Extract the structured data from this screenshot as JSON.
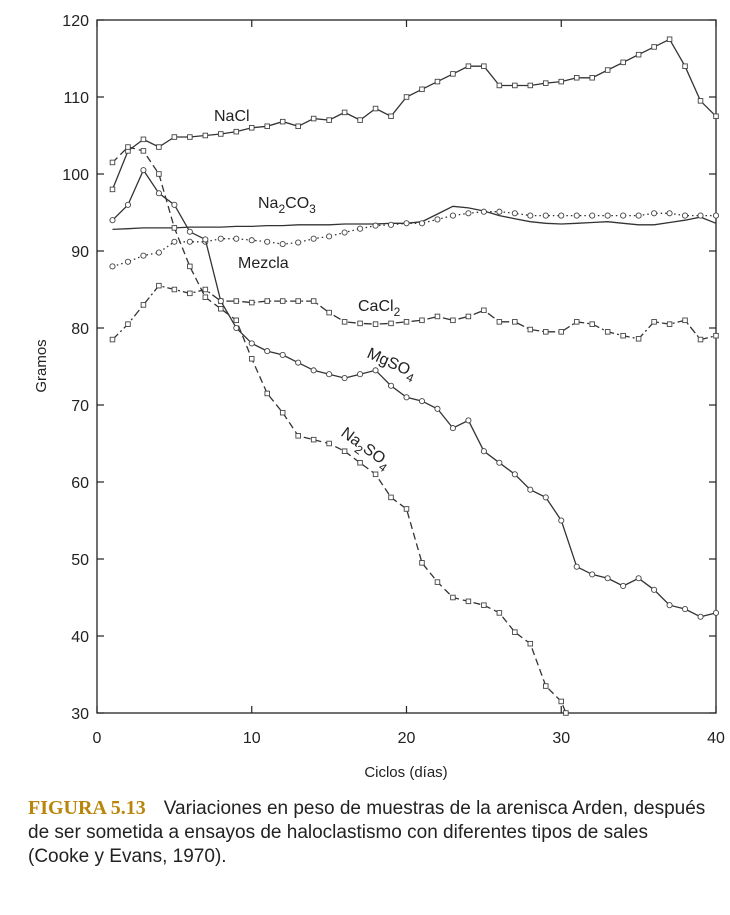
{
  "chart_data": {
    "type": "line",
    "xlabel": "Ciclos (días)",
    "ylabel": "Gramos",
    "xlim": [
      0,
      40
    ],
    "ylim": [
      30,
      120
    ],
    "xticks": [
      0,
      10,
      20,
      30,
      40
    ],
    "yticks": [
      30,
      40,
      50,
      60,
      70,
      80,
      90,
      100,
      110,
      120
    ],
    "grid": false,
    "series": [
      {
        "name": "NaCl",
        "label_main": "NaCl",
        "label_sub": "",
        "label_tail": "",
        "style": "solid",
        "marker": "square",
        "x": [
          1,
          2,
          3,
          4,
          5,
          6,
          7,
          8,
          9,
          10,
          11,
          12,
          13,
          14,
          15,
          16,
          17,
          18,
          19,
          20,
          21,
          22,
          23,
          24,
          25,
          26,
          27,
          28,
          29,
          30,
          31,
          32,
          33,
          34,
          35,
          36,
          37,
          38,
          39,
          40
        ],
        "y": [
          98,
          103,
          104.5,
          103.5,
          104.8,
          104.8,
          105,
          105.2,
          105.5,
          106,
          106.2,
          106.8,
          106.2,
          107.2,
          107,
          108,
          107,
          108.5,
          107.5,
          110,
          111,
          112,
          113,
          114,
          114,
          111.5,
          111.5,
          111.5,
          111.8,
          112,
          112.5,
          112.5,
          113.5,
          114.5,
          115.5,
          116.5,
          117.5,
          114,
          109.5,
          107.5
        ]
      },
      {
        "name": "Na2CO3",
        "label_main": "Na",
        "label_sub": "2",
        "label_tail": "CO3",
        "style": "solid",
        "marker": "none",
        "x": [
          1,
          2,
          3,
          4,
          5,
          6,
          7,
          8,
          9,
          10,
          11,
          12,
          13,
          14,
          15,
          16,
          17,
          18,
          19,
          20,
          21,
          22,
          23,
          24,
          25,
          26,
          27,
          28,
          29,
          30,
          31,
          32,
          33,
          34,
          35,
          36,
          37,
          38,
          39,
          40
        ],
        "y": [
          92.8,
          92.9,
          93,
          93,
          93,
          93.1,
          93.1,
          93.1,
          93.2,
          93.2,
          93.3,
          93.3,
          93.4,
          93.4,
          93.4,
          93.5,
          93.5,
          93.5,
          93.6,
          93.6,
          93.8,
          94.8,
          95.8,
          95.6,
          95.2,
          94.6,
          94.2,
          93.8,
          93.6,
          93.5,
          93.6,
          93.7,
          93.8,
          93.6,
          93.4,
          93.4,
          93.7,
          94,
          94.4,
          93.6
        ]
      },
      {
        "name": "Mezcla",
        "label_main": "Mezcla",
        "label_sub": "",
        "label_tail": "",
        "style": "dotted",
        "marker": "circle",
        "x": [
          1,
          2,
          3,
          4,
          5,
          6,
          7,
          8,
          9,
          10,
          11,
          12,
          13,
          14,
          15,
          16,
          17,
          18,
          19,
          20,
          21,
          22,
          23,
          24,
          25,
          26,
          27,
          28,
          29,
          30,
          31,
          32,
          33,
          34,
          35,
          36,
          37,
          38,
          39,
          40
        ],
        "y": [
          88,
          88.6,
          89.4,
          89.8,
          91.2,
          91.2,
          91.2,
          91.6,
          91.6,
          91.4,
          91.2,
          90.9,
          91.1,
          91.6,
          91.9,
          92.4,
          92.9,
          93.3,
          93.4,
          93.6,
          93.6,
          94.1,
          94.6,
          94.9,
          95.1,
          95.1,
          94.9,
          94.6,
          94.6,
          94.6,
          94.6,
          94.6,
          94.6,
          94.6,
          94.6,
          94.9,
          94.9,
          94.6,
          94.6,
          94.6
        ]
      },
      {
        "name": "CaCl2",
        "label_main": "CaCl",
        "label_sub": "2",
        "label_tail": "",
        "style": "dashdot",
        "marker": "square",
        "x": [
          1,
          2,
          3,
          4,
          5,
          6,
          7,
          8,
          9,
          10,
          11,
          12,
          13,
          14,
          15,
          16,
          17,
          18,
          19,
          20,
          21,
          22,
          23,
          24,
          25,
          26,
          27,
          28,
          29,
          30,
          31,
          32,
          33,
          34,
          35,
          36,
          37,
          38,
          39,
          40
        ],
        "y": [
          78.5,
          80.5,
          83,
          85.5,
          85,
          84.5,
          85,
          83.5,
          83.5,
          83.3,
          83.5,
          83.5,
          83.5,
          83.5,
          82,
          80.8,
          80.6,
          80.5,
          80.6,
          80.8,
          81,
          81.5,
          81,
          81.5,
          82.3,
          80.8,
          80.8,
          79.8,
          79.5,
          79.5,
          80.8,
          80.5,
          79.5,
          79,
          78.6,
          80.8,
          80.5,
          81,
          78.5,
          79
        ]
      },
      {
        "name": "MgSO4",
        "label_main": "MgSO",
        "label_sub": "4",
        "label_tail": "",
        "style": "solid",
        "marker": "circle",
        "x": [
          1,
          2,
          3,
          4,
          5,
          6,
          7,
          8,
          9,
          10,
          11,
          12,
          13,
          14,
          15,
          16,
          17,
          18,
          19,
          20,
          21,
          22,
          23,
          24,
          25,
          26,
          27,
          28,
          29,
          30,
          31,
          32,
          33,
          34,
          35,
          36,
          37,
          38,
          39,
          40
        ],
        "y": [
          94,
          96,
          100.5,
          97.5,
          96,
          92.5,
          91.5,
          83.5,
          80,
          78,
          77,
          76.5,
          75.5,
          74.5,
          74,
          73.5,
          74,
          74.5,
          72.5,
          71,
          70.5,
          69.5,
          67,
          68,
          64,
          62.5,
          61,
          59,
          58,
          55,
          49,
          48,
          47.5,
          46.5,
          47.5,
          46,
          44,
          43.5,
          42.5,
          43
        ]
      },
      {
        "name": "Na2SO4",
        "label_main": "Na",
        "label_sub": "2",
        "label_tail": "SO4",
        "style": "dashed",
        "marker": "square",
        "x": [
          1,
          2,
          3,
          4,
          5,
          6,
          7,
          8,
          9,
          10,
          11,
          12,
          13,
          14,
          15,
          16,
          17,
          18,
          19,
          20,
          21,
          22,
          23,
          24,
          25,
          26,
          27,
          28,
          29,
          30,
          30.3
        ],
        "y": [
          101.5,
          103.5,
          103,
          100,
          93,
          88,
          84,
          82.5,
          81,
          76,
          71.5,
          69,
          66,
          65.5,
          65,
          64,
          62.5,
          61,
          58,
          56.5,
          49.5,
          47,
          45,
          44.5,
          44,
          43,
          40.5,
          39,
          33.5,
          31.5,
          30
        ]
      }
    ]
  },
  "caption": {
    "figure_label": "FIGURA 5.13",
    "text": "Variaciones en peso de muestras de la arenisca Arden, después de ser sometida a ensayos de haloclastismo con diferentes tipos de sales (Cooke y Evans, 1970)."
  }
}
